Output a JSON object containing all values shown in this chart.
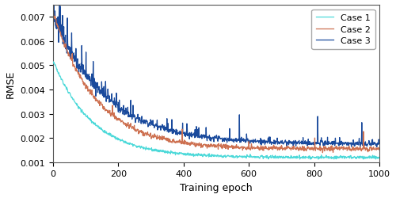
{
  "title": "",
  "xlabel": "Training epoch",
  "ylabel": "RMSE",
  "xlim": [
    0,
    1000
  ],
  "ylim": [
    0.001,
    0.0075
  ],
  "yticks": [
    0.001,
    0.002,
    0.003,
    0.004,
    0.005,
    0.006,
    0.007
  ],
  "xticks": [
    0,
    200,
    400,
    600,
    800,
    1000
  ],
  "legend_labels": [
    "Case 1",
    "Case 2",
    "Case 3"
  ],
  "colors": [
    "#4DD9D9",
    "#CD7050",
    "#1A4A9C"
  ],
  "linewidths": [
    0.9,
    0.9,
    0.9
  ],
  "n_epochs": 1000,
  "background_color": "#ffffff"
}
